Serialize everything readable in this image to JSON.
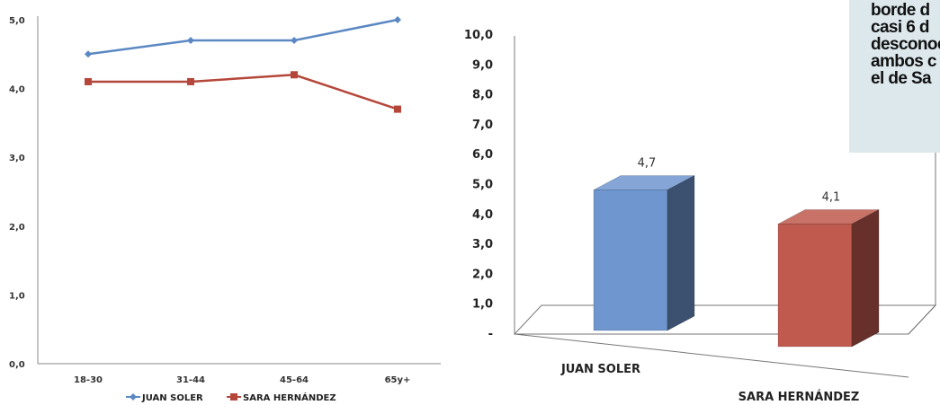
{
  "chart_data": [
    {
      "type": "line",
      "categories": [
        "18-30",
        "31-44",
        "45-64",
        "65y+"
      ],
      "series": [
        {
          "name": "JUAN SOLER",
          "values": [
            4.5,
            4.7,
            4.7,
            5.0
          ],
          "color": "#5b88c3",
          "marker": "diamond"
        },
        {
          "name": "SARA HERNÁNDEZ",
          "values": [
            4.1,
            4.1,
            4.2,
            3.7
          ],
          "color": "#b5473a",
          "marker": "square"
        }
      ],
      "ylim": [
        0,
        5
      ],
      "yticks": [
        "0,0",
        "1,0",
        "2,0",
        "3,0",
        "4,0",
        "5,0"
      ],
      "grid": false,
      "legend": "bottom"
    },
    {
      "type": "bar",
      "style": "3d",
      "categories": [
        "JUAN SOLER",
        "SARA HERNÁNDEZ"
      ],
      "values": [
        4.7,
        4.1
      ],
      "data_labels": [
        "4,7",
        "4,1"
      ],
      "colors": [
        "#6f96cf",
        "#c05a4e"
      ],
      "ylim": [
        0,
        10
      ],
      "yticks": [
        "-",
        "1,0",
        "2,0",
        "3,0",
        "4,0",
        "5,0",
        "6,0",
        "7,0",
        "8,0",
        "9,0",
        "10,0"
      ],
      "grid": false
    }
  ],
  "note": {
    "lines": [
      "borde d",
      "casi 6 d",
      "desconoc",
      "ambos c",
      "el de Sa"
    ]
  }
}
